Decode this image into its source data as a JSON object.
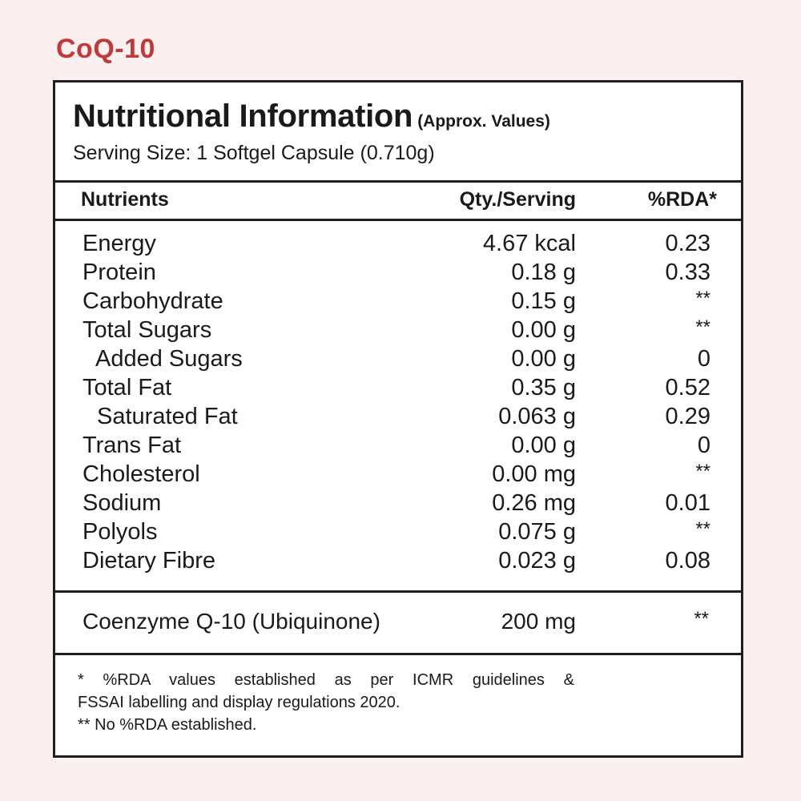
{
  "product_title": "CoQ-10",
  "panel": {
    "heading": "Nutritional Information",
    "heading_note": "(Approx. Values)",
    "serving_size": "Serving Size: 1 Softgel Capsule (0.710g)"
  },
  "table": {
    "headers": {
      "nutrients": "Nutrients",
      "qty": "Qty./Serving",
      "rda": "%RDA*"
    },
    "rows": [
      {
        "name": "Energy",
        "qty": "4.67 kcal",
        "rda": "0.23"
      },
      {
        "name": "Protein",
        "qty": "0.18 g",
        "rda": "0.33"
      },
      {
        "name": "Carbohydrate",
        "qty": "0.15 g",
        "rda": "**"
      },
      {
        "name": "Total Sugars",
        "qty": "0.00 g",
        "rda": "**"
      },
      {
        "name": "Added Sugars",
        "qty": "0.00 g",
        "rda": "0"
      },
      {
        "name": "Total Fat",
        "qty": "0.35 g",
        "rda": "0.52"
      },
      {
        "name": "Saturated Fat",
        "qty": "0.063 g",
        "rda": "0.29"
      },
      {
        "name": "Trans Fat",
        "qty": "0.00 g",
        "rda": "0"
      },
      {
        "name": "Cholesterol",
        "qty": "0.00 mg",
        "rda": "**"
      },
      {
        "name": "Sodium",
        "qty": "0.26 mg",
        "rda": "0.01"
      },
      {
        "name": "Polyols",
        "qty": "0.075 g",
        "rda": "**"
      },
      {
        "name": "Dietary Fibre",
        "qty": "0.023 g",
        "rda": "0.08"
      }
    ],
    "active": {
      "name": "Coenzyme Q-10 (Ubiquinone)",
      "qty": "200 mg",
      "rda": "**"
    }
  },
  "footnotes": {
    "line1": "* %RDA values established as per ICMR guidelines &",
    "line2": "FSSAI labelling and display regulations 2020.",
    "line3": "** No %RDA established."
  },
  "colors": {
    "background": "#faf0ef",
    "title": "#c0393b",
    "border": "#1e1e1e"
  }
}
